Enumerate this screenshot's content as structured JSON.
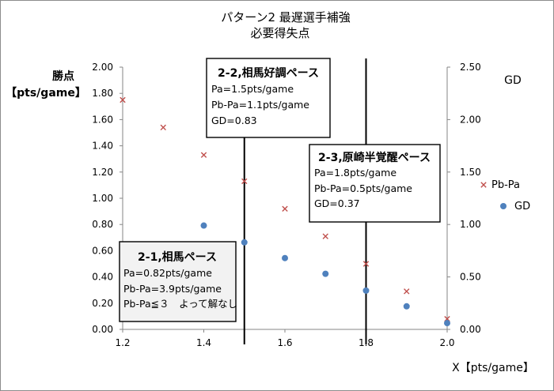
{
  "chart_data": {
    "type": "scatter",
    "title": "パターン2 最遅選手補強",
    "subtitle": "必要得失点",
    "xlabel": "X【pts/game】",
    "ylabel_left_line1": "勝点",
    "ylabel_left_line2": "【pts/game】",
    "ylabel_right": "GD",
    "x_ticks": [
      "1.2",
      "1.4",
      "1.6",
      "1.8",
      "2.0"
    ],
    "y_left_ticks": [
      "2.00",
      "1.80",
      "1.60",
      "1.40",
      "1.20",
      "1.00",
      "0.80",
      "0.60",
      "0.40",
      "0.20",
      "0.00"
    ],
    "y_right_ticks": [
      "2.50",
      "2.00",
      "1.50",
      "1.00",
      "0.50",
      "0.00"
    ],
    "xlim": [
      1.2,
      2.0
    ],
    "ylim_left": [
      0,
      2.0
    ],
    "ylim_right": [
      0,
      2.5
    ],
    "grid": false,
    "legend_position": "right",
    "series": [
      {
        "name": "Pb-Pa",
        "axis": "left",
        "marker": "x",
        "color": "#c0504d",
        "points": [
          [
            1.2,
            1.75
          ],
          [
            1.3,
            1.54
          ],
          [
            1.4,
            1.33
          ],
          [
            1.5,
            1.13
          ],
          [
            1.6,
            0.92
          ],
          [
            1.7,
            0.71
          ],
          [
            1.8,
            0.5
          ],
          [
            1.9,
            0.29
          ],
          [
            2.0,
            0.08
          ]
        ]
      },
      {
        "name": "GD",
        "axis": "right",
        "marker": "circle",
        "color": "#4f81bd",
        "points": [
          [
            1.4,
            0.99
          ],
          [
            1.5,
            0.83
          ],
          [
            1.6,
            0.68
          ],
          [
            1.7,
            0.53
          ],
          [
            1.8,
            0.37
          ],
          [
            1.9,
            0.22
          ],
          [
            2.0,
            0.06
          ]
        ]
      }
    ],
    "vlines": [
      1.5,
      1.8
    ],
    "annotations": [
      {
        "id": "case-2-1",
        "title": "2-1,相馬ペース",
        "lines": [
          "Pa=0.82pts/game",
          "Pb-Pa=3.9pts/game",
          "Pb-Pa≦３　よって解なし"
        ],
        "shaded": true
      },
      {
        "id": "case-2-2",
        "title": "2-2,相馬好調ペース",
        "lines": [
          "Pa=1.5pts/game",
          "Pb-Pa=1.1pts/game",
          "GD=0.83"
        ],
        "shaded": false
      },
      {
        "id": "case-2-3",
        "title": "2-3,原崎半覚醒ペース",
        "lines": [
          "Pa=1.8pts/game",
          "Pb-Pa=0.5pts/game",
          "GD=0.37"
        ],
        "shaded": false
      }
    ]
  }
}
